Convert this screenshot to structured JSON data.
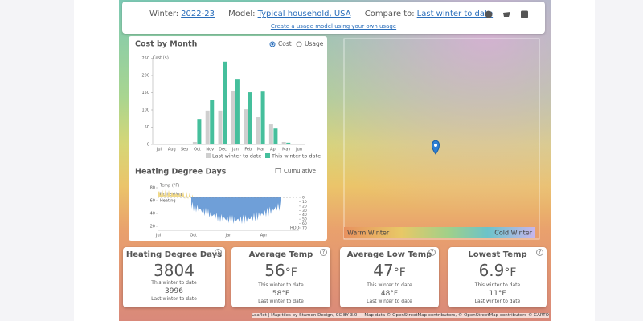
{
  "header": {
    "winter_label": "Winter:",
    "winter": "2022-23",
    "model_label": "Model:",
    "model": "Typical household, USA",
    "compare_label": "Compare to:",
    "compare": "Last winter to date",
    "link": "Create a usage model using your own usage"
  },
  "chart_data": {
    "type": "bar",
    "title": "Cost by Month",
    "toggles": [
      "Cost",
      "Usage"
    ],
    "y_label": "Cost ($)",
    "categories": [
      "Jul",
      "Aug",
      "Sep",
      "Oct",
      "Nov",
      "Dec",
      "Jan",
      "Feb",
      "Mar",
      "Apr",
      "May",
      "Jun"
    ],
    "series": [
      {
        "name": "Last winter to date",
        "color": "#cfcfcf",
        "values": [
          0,
          0,
          0,
          7,
          98,
          98,
          154,
          102,
          79,
          58,
          7,
          0
        ]
      },
      {
        "name": "This winter to date",
        "color": "#45bf9c",
        "values": [
          0,
          0,
          0,
          74,
          128,
          240,
          188,
          151,
          153,
          46,
          5,
          null
        ]
      }
    ],
    "ylim": [
      0,
      250
    ],
    "yticks": [
      0,
      50,
      100,
      150,
      200,
      250
    ]
  },
  "hdd_chart": {
    "title": "Heating Degree Days",
    "option": "Cumulative",
    "temp_label": "Temp (°F)",
    "no_heating": "No heating",
    "heating": "Heating",
    "hdd_label": "HDD",
    "months": [
      "Jul",
      "Oct",
      "Jan",
      "Apr"
    ],
    "ylim": [
      20,
      80
    ],
    "yticks": [
      20,
      40,
      60,
      80
    ],
    "y2lim": [
      0,
      70
    ],
    "y2ticks": [
      0,
      10,
      20,
      30,
      40,
      50,
      60,
      70
    ]
  },
  "map_legend": {
    "warm": "Warm Winter",
    "cold": "Cold Winter"
  },
  "cards": [
    {
      "title": "Heating Degree Days",
      "value": 3804,
      "current_label": "This winter to date",
      "last_value": "3996",
      "last_label": "Last winter to date"
    },
    {
      "title": "Average Temp",
      "value": 56,
      "unit": "°F",
      "current_label": "This winter to date",
      "last_value": "58°F",
      "last_label": "Last winter to date"
    },
    {
      "title": "Average Low Temp",
      "value": 47,
      "unit": "°F",
      "current_label": "This winter to date",
      "last_value": "48°F",
      "last_label": "Last winter to date"
    },
    {
      "title": "Lowest Temp",
      "value": 6.9,
      "unit": "°F",
      "current_label": "This winter to date",
      "last_value": "11°F",
      "last_label": "Last winter to date"
    }
  ],
  "attribution": "Leaflet | Map tiles by Stamen Design, CC BY 3.0 — Map data © OpenStreetMap contributors, © OpenStreetMap contributors © CARTO"
}
